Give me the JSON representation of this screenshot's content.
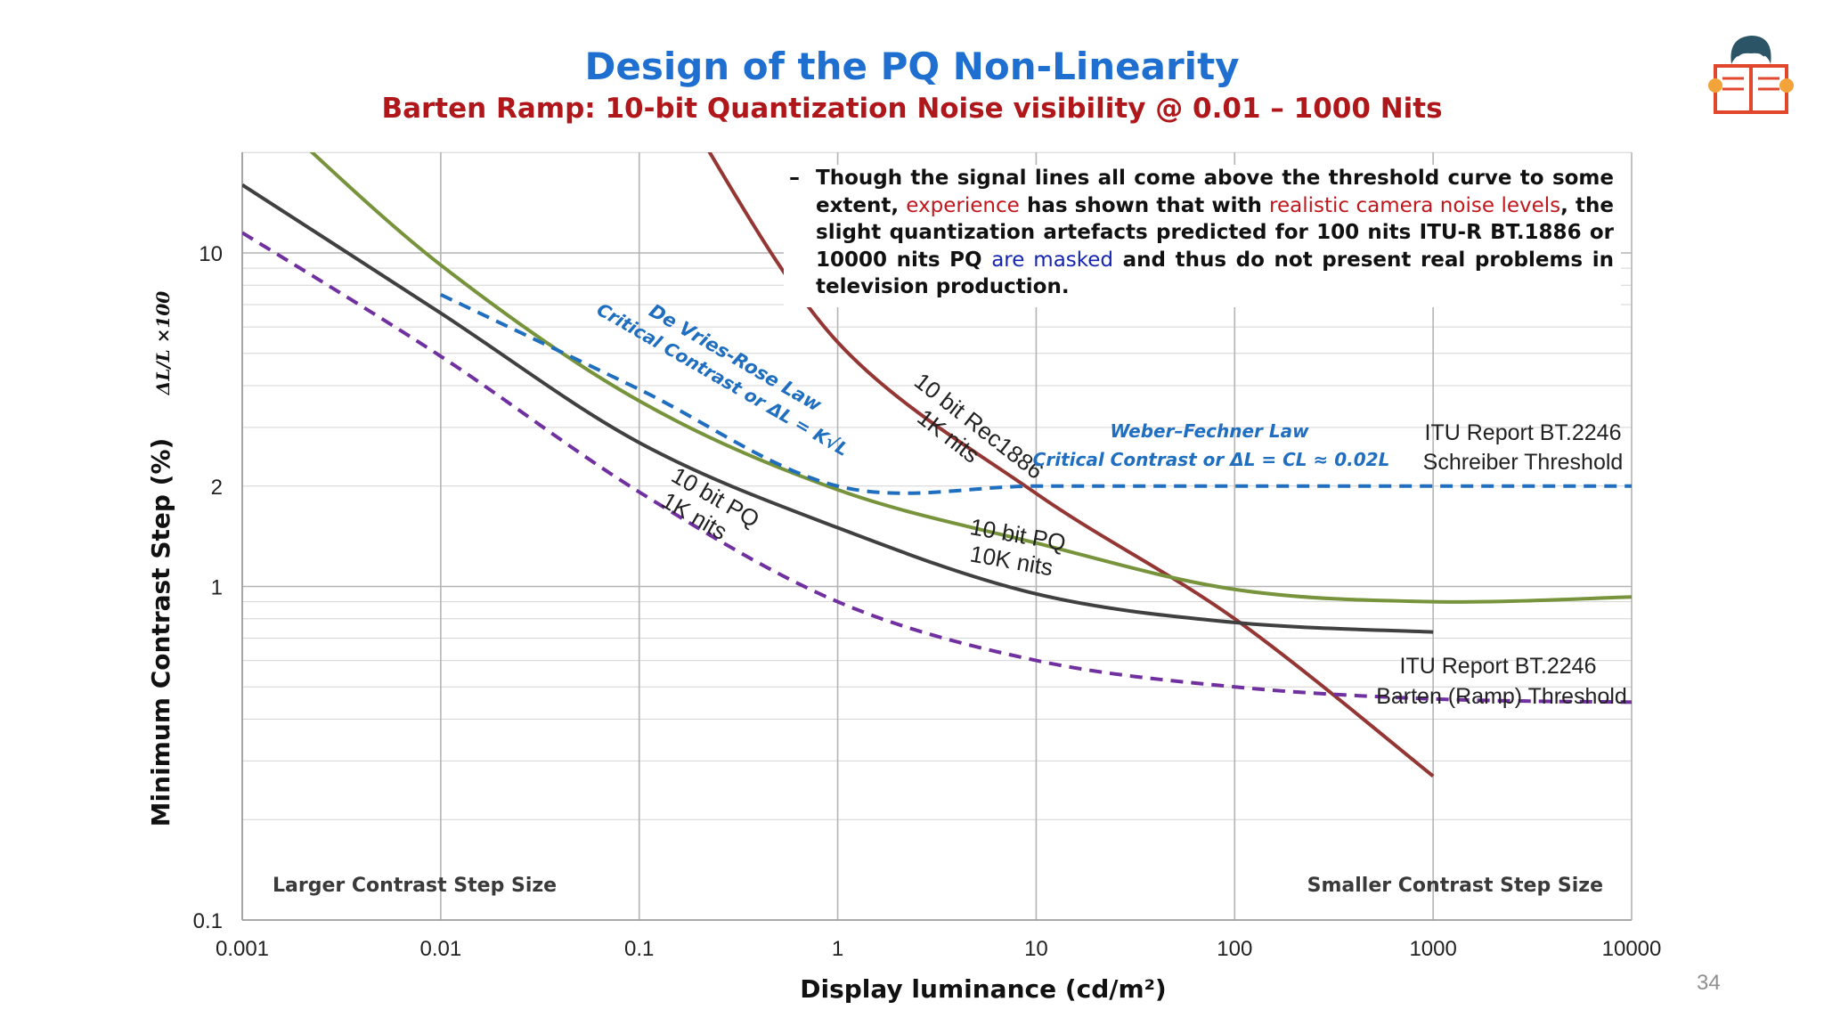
{
  "title": "Design of the PQ Non-Linearity",
  "subtitle": "Barten Ramp:  10-bit Quantization Noise visibility @ 0.01 – 1000 Nits",
  "note": {
    "bullet": "–",
    "part1": "Though the signal lines all come above the threshold curve to some extent, ",
    "highlight1": "experience",
    "part2": " has shown that with ",
    "highlight2": "realistic camera noise levels",
    "part3": ", the slight quantization artefacts predicted for 100 nits ITU-R BT.1886 or 10000 nits PQ ",
    "highlight3": "are masked",
    "part4": " and thus do not present real problems in television production."
  },
  "page_number": "34",
  "colors": {
    "title": "#1f6fd0",
    "subtitle": "#b0171b",
    "highlight_red": "#c0171d",
    "highlight_blue": "#1424b0"
  },
  "icons": {
    "logo": "reader-book-icon"
  },
  "chart_data": {
    "type": "line",
    "xscale": "log",
    "yscale": "log",
    "xlim": [
      0.001,
      10000
    ],
    "ylim": [
      0.1,
      25
    ],
    "grid": true,
    "xlabel": "Display luminance (cd/m²)",
    "ylabel": "Minimum Contrast Step (%)",
    "ylabel_formula": "ΔL/L ×100",
    "xticks": [
      {
        "value": 0.001,
        "label": "0.001"
      },
      {
        "value": 0.01,
        "label": "0.01"
      },
      {
        "value": 0.1,
        "label": "0.1"
      },
      {
        "value": 1,
        "label": "1"
      },
      {
        "value": 10,
        "label": "10"
      },
      {
        "value": 100,
        "label": "100"
      },
      {
        "value": 1000,
        "label": "1000"
      },
      {
        "value": 10000,
        "label": "10000"
      }
    ],
    "yticks": [
      {
        "value": 0.1,
        "label": "0.1"
      },
      {
        "value": 1,
        "label": "1"
      },
      {
        "value": 2,
        "label": "2"
      },
      {
        "value": 10,
        "label": "10"
      }
    ],
    "series": [
      {
        "key": "rec1886",
        "color": "#943634",
        "dash": false,
        "points": [
          [
            0.18,
            25
          ],
          [
            1,
            5.4
          ],
          [
            10,
            1.9
          ],
          [
            100,
            0.8
          ],
          [
            1000,
            0.27
          ]
        ]
      },
      {
        "key": "pq10k",
        "color": "#77933c",
        "dash": false,
        "points": [
          [
            0.0015,
            25
          ],
          [
            0.01,
            9.2
          ],
          [
            0.1,
            3.6
          ],
          [
            1,
            1.95
          ],
          [
            10,
            1.35
          ],
          [
            100,
            0.98
          ],
          [
            1000,
            0.9
          ],
          [
            10000,
            0.93
          ]
        ]
      },
      {
        "key": "pq1k",
        "color": "#404040",
        "dash": false,
        "points": [
          [
            0.001,
            16
          ],
          [
            0.01,
            6.6
          ],
          [
            0.1,
            2.7
          ],
          [
            1,
            1.5
          ],
          [
            10,
            0.95
          ],
          [
            100,
            0.78
          ],
          [
            1000,
            0.73
          ]
        ]
      },
      {
        "key": "barten",
        "color": "#7030a0",
        "dash": true,
        "points": [
          [
            0.001,
            11.5
          ],
          [
            0.01,
            4.9
          ],
          [
            0.1,
            1.92
          ],
          [
            1,
            0.9
          ],
          [
            10,
            0.6
          ],
          [
            100,
            0.5
          ],
          [
            1000,
            0.46
          ],
          [
            10000,
            0.45
          ]
        ]
      },
      {
        "key": "schreiber",
        "color": "#1f6ebf",
        "dash": true,
        "points": [
          [
            0.01,
            7.5
          ],
          [
            0.1,
            3.9
          ],
          [
            1,
            2
          ],
          [
            10,
            2
          ],
          [
            100,
            2
          ],
          [
            1000,
            2
          ],
          [
            10000,
            2
          ]
        ]
      }
    ],
    "annotations": {
      "devries_line1": "De Vries-Rose Law",
      "devries_line2": "Critical Contrast or ΔL = K√L",
      "weber_line1": "Weber–Fechner Law",
      "weber_line2": "Critical Contrast or ΔL = CL ≈ 0.02L",
      "rec1886_line1": "10 bit Rec1886",
      "rec1886_line2": "1K nits",
      "pq1k_line1": "10 bit PQ",
      "pq1k_line2": "1K nits",
      "pq10k_line1": "10 bit PQ",
      "pq10k_line2": "10K nits",
      "schreiber_line1": "ITU Report BT.2246",
      "schreiber_line2": "Schreiber Threshold",
      "barten_line1": "ITU Report BT.2246",
      "barten_line2": "Barten (Ramp) Threshold",
      "larger": "Larger Contrast Step Size",
      "smaller": "Smaller Contrast Step Size"
    }
  }
}
